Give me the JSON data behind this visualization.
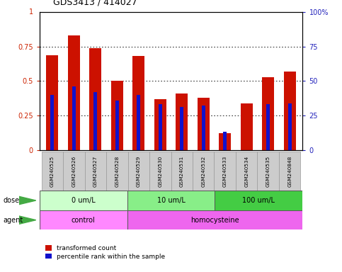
{
  "title": "GDS3413 / 414027",
  "samples": [
    "GSM240525",
    "GSM240526",
    "GSM240527",
    "GSM240528",
    "GSM240529",
    "GSM240530",
    "GSM240531",
    "GSM240532",
    "GSM240533",
    "GSM240534",
    "GSM240535",
    "GSM240848"
  ],
  "red_values": [
    0.69,
    0.83,
    0.74,
    0.5,
    0.68,
    0.37,
    0.41,
    0.38,
    0.12,
    0.34,
    0.53,
    0.57
  ],
  "blue_values": [
    0.4,
    0.46,
    0.42,
    0.36,
    0.4,
    0.33,
    0.31,
    0.32,
    0.13,
    0.0,
    0.33,
    0.34
  ],
  "dose_groups": [
    {
      "label": "0 um/L",
      "start": 0,
      "end": 4,
      "color": "#ccffcc"
    },
    {
      "label": "10 um/L",
      "start": 4,
      "end": 8,
      "color": "#88ee88"
    },
    {
      "label": "100 um/L",
      "start": 8,
      "end": 12,
      "color": "#44cc44"
    }
  ],
  "agent_groups": [
    {
      "label": "control",
      "start": 0,
      "end": 4,
      "color": "#ff88ff"
    },
    {
      "label": "homocysteine",
      "start": 4,
      "end": 12,
      "color": "#ee66ee"
    }
  ],
  "red_color": "#cc1100",
  "blue_color": "#1111cc",
  "ylim": [
    0,
    1.0
  ],
  "yticks": [
    0,
    0.25,
    0.5,
    0.75
  ],
  "background_color": "#ffffff",
  "tick_label_color_left": "#cc2200",
  "tick_label_color_right": "#2222bb"
}
